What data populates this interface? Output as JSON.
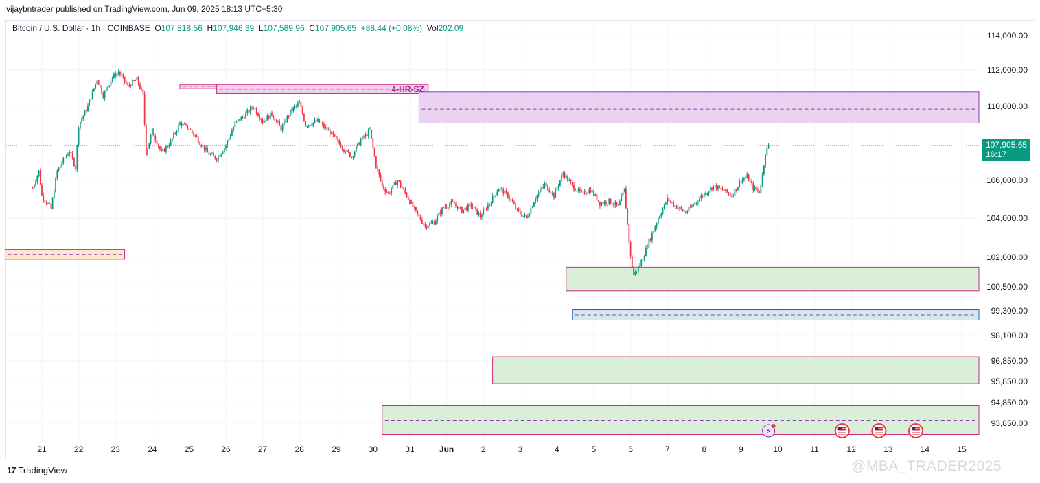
{
  "publish_line": "vijaybntrader published on TradingView.com, Jun 09, 2025 18:13 UTC+5:30",
  "symbol": {
    "name": "Bitcoin / U.S. Dollar · 1h · COINBASE",
    "open_label": "O",
    "open": "107,818.56",
    "high_label": "H",
    "high": "107,946.39",
    "low_label": "L",
    "low": "107,589.96",
    "close_label": "C",
    "close": "107,905.65",
    "change": "+88.44 (+0.08%)",
    "vol_label": "Vol",
    "vol": "202.09"
  },
  "price_tag": {
    "price": "107,905.65",
    "countdown": "16:17"
  },
  "footer": {
    "logo_mark": "17",
    "logo_text": "TradingView"
  },
  "watermark": "@MBA_TRADER2025",
  "colors": {
    "up": "#089981",
    "down": "#f23645",
    "accent": "#089981"
  },
  "chart_data": {
    "type": "candlestick",
    "title": "Bitcoin / U.S. Dollar · 1h · COINBASE",
    "y_axis_labels": [
      "114,000.00",
      "112,000.00",
      "110,000.00",
      "106,000.00",
      "104,000.00",
      "102,000.00",
      "100,500.00",
      "99,300.00",
      "98,100.00",
      "96,850.00",
      "95,850.00",
      "94,850.00",
      "93,850.00"
    ],
    "x_axis_labels": [
      "21",
      "22",
      "23",
      "24",
      "25",
      "26",
      "27",
      "28",
      "29",
      "30",
      "31",
      "Jun",
      "2",
      "3",
      "4",
      "5",
      "6",
      "7",
      "8",
      "9",
      "10",
      "11",
      "12",
      "13",
      "14",
      "15"
    ],
    "current_price": 107905.65,
    "price_path": [
      {
        "x": "May 20 18:00",
        "y": 105600
      },
      {
        "x": "May 20 22:00",
        "y": 106500
      },
      {
        "x": "May 21 00:00",
        "y": 105200
      },
      {
        "x": "May 21 06:00",
        "y": 104500
      },
      {
        "x": "May 21 10:00",
        "y": 106500
      },
      {
        "x": "May 21 14:00",
        "y": 107100
      },
      {
        "x": "May 21 18:00",
        "y": 107600
      },
      {
        "x": "May 21 22:00",
        "y": 106700
      },
      {
        "x": "May 22 00:00",
        "y": 109000
      },
      {
        "x": "May 22 06:00",
        "y": 110000
      },
      {
        "x": "May 22 12:00",
        "y": 111500
      },
      {
        "x": "May 22 16:00",
        "y": 110600
      },
      {
        "x": "May 22 22:00",
        "y": 111600
      },
      {
        "x": "May 23 02:00",
        "y": 111900
      },
      {
        "x": "May 23 08:00",
        "y": 111100
      },
      {
        "x": "May 23 14:00",
        "y": 111500
      },
      {
        "x": "May 23 18:00",
        "y": 110600
      },
      {
        "x": "May 23 20:00",
        "y": 107500
      },
      {
        "x": "May 24 00:00",
        "y": 108700
      },
      {
        "x": "May 24 06:00",
        "y": 107500
      },
      {
        "x": "May 24 12:00",
        "y": 108100
      },
      {
        "x": "May 24 18:00",
        "y": 109100
      },
      {
        "x": "May 25 00:00",
        "y": 108800
      },
      {
        "x": "May 25 06:00",
        "y": 108200
      },
      {
        "x": "May 25 12:00",
        "y": 107500
      },
      {
        "x": "May 25 18:00",
        "y": 107200
      },
      {
        "x": "May 26 00:00",
        "y": 107900
      },
      {
        "x": "May 26 06:00",
        "y": 109100
      },
      {
        "x": "May 26 12:00",
        "y": 109500
      },
      {
        "x": "May 26 18:00",
        "y": 110000
      },
      {
        "x": "May 27 00:00",
        "y": 109200
      },
      {
        "x": "May 27 06:00",
        "y": 109600
      },
      {
        "x": "May 27 12:00",
        "y": 108800
      },
      {
        "x": "May 27 18:00",
        "y": 109700
      },
      {
        "x": "May 28 00:00",
        "y": 110200
      },
      {
        "x": "May 28 04:00",
        "y": 109000
      },
      {
        "x": "May 28 12:00",
        "y": 109200
      },
      {
        "x": "May 28 20:00",
        "y": 108600
      },
      {
        "x": "May 29 04:00",
        "y": 107800
      },
      {
        "x": "May 29 10:00",
        "y": 107300
      },
      {
        "x": "May 29 16:00",
        "y": 108200
      },
      {
        "x": "May 29 22:00",
        "y": 108700
      },
      {
        "x": "May 30 02:00",
        "y": 106800
      },
      {
        "x": "May 30 06:00",
        "y": 105700
      },
      {
        "x": "May 30 10:00",
        "y": 105300
      },
      {
        "x": "May 30 16:00",
        "y": 106000
      },
      {
        "x": "May 30 22:00",
        "y": 105200
      },
      {
        "x": "May 31 04:00",
        "y": 104300
      },
      {
        "x": "May 31 10:00",
        "y": 103600
      },
      {
        "x": "May 31 16:00",
        "y": 103800
      },
      {
        "x": "May 31 22:00",
        "y": 104600
      },
      {
        "x": "Jun 1 04:00",
        "y": 104800
      },
      {
        "x": "Jun 1 10:00",
        "y": 104400
      },
      {
        "x": "Jun 1 16:00",
        "y": 104700
      },
      {
        "x": "Jun 1 22:00",
        "y": 104100
      },
      {
        "x": "Jun 2 04:00",
        "y": 104800
      },
      {
        "x": "Jun 2 10:00",
        "y": 105600
      },
      {
        "x": "Jun 2 16:00",
        "y": 105200
      },
      {
        "x": "Jun 2 22:00",
        "y": 104400
      },
      {
        "x": "Jun 3 04:00",
        "y": 104000
      },
      {
        "x": "Jun 3 10:00",
        "y": 105100
      },
      {
        "x": "Jun 3 16:00",
        "y": 105800
      },
      {
        "x": "Jun 3 22:00",
        "y": 105200
      },
      {
        "x": "Jun 4 04:00",
        "y": 106400
      },
      {
        "x": "Jun 4 10:00",
        "y": 105700
      },
      {
        "x": "Jun 4 16:00",
        "y": 105300
      },
      {
        "x": "Jun 4 22:00",
        "y": 105500
      },
      {
        "x": "Jun 5 04:00",
        "y": 104800
      },
      {
        "x": "Jun 5 10:00",
        "y": 104900
      },
      {
        "x": "Jun 5 16:00",
        "y": 104600
      },
      {
        "x": "Jun 5 20:00",
        "y": 105500
      },
      {
        "x": "Jun 5 22:00",
        "y": 103700
      },
      {
        "x": "Jun 6 00:00",
        "y": 102000
      },
      {
        "x": "Jun 6 02:00",
        "y": 101100
      },
      {
        "x": "Jun 6 06:00",
        "y": 101600
      },
      {
        "x": "Jun 6 12:00",
        "y": 102800
      },
      {
        "x": "Jun 6 18:00",
        "y": 104000
      },
      {
        "x": "Jun 7 00:00",
        "y": 105000
      },
      {
        "x": "Jun 7 06:00",
        "y": 104600
      },
      {
        "x": "Jun 7 12:00",
        "y": 104300
      },
      {
        "x": "Jun 7 18:00",
        "y": 104800
      },
      {
        "x": "Jun 8 00:00",
        "y": 105300
      },
      {
        "x": "Jun 8 06:00",
        "y": 105700
      },
      {
        "x": "Jun 8 12:00",
        "y": 105500
      },
      {
        "x": "Jun 8 18:00",
        "y": 105200
      },
      {
        "x": "Jun 9 00:00",
        "y": 106000
      },
      {
        "x": "Jun 9 04:00",
        "y": 106200
      },
      {
        "x": "Jun 9 08:00",
        "y": 105600
      },
      {
        "x": "Jun 9 12:00",
        "y": 105400
      },
      {
        "x": "Jun 9 14:00",
        "y": 106300
      },
      {
        "x": "Jun 9 16:00",
        "y": 107500
      },
      {
        "x": "Jun 9 18:00",
        "y": 107905.65
      }
    ],
    "zones": [
      {
        "label": "",
        "from_time": "May 20",
        "to_time": "May 23 06:00",
        "low": 101900,
        "high": 102400,
        "mid": 102150,
        "fill": "#ffe7cf",
        "border": "#cc2a7a"
      },
      {
        "label": "",
        "from_time": "May 24 18:00",
        "to_time": "May 27 08:00",
        "low": 111000,
        "high": 111200,
        "mid": 111100,
        "fill": "#f9cfe6",
        "border": "#cc2a7a"
      },
      {
        "label": "4-HR-SZ",
        "from_time": "May 25 18:00",
        "to_time": "May 31 12:00",
        "low": 110700,
        "high": 111200,
        "mid": 110950,
        "fill": "#f5cdee",
        "border": "#cc2a7a"
      },
      {
        "label": "",
        "from_time": "May 31 06:00",
        "to_time": "Jun 16",
        "low": 109100,
        "high": 110800,
        "mid": 109850,
        "fill": "#ead3f0",
        "border": "#8e3ab0"
      },
      {
        "label": "",
        "from_time": "Jun 4 06:00",
        "to_time": "Jun 16",
        "low": 100300,
        "high": 101500,
        "mid": 100900,
        "fill": "#d9efd7",
        "border": "#cc2a7a"
      },
      {
        "label": "",
        "from_time": "Jun 4 10:00",
        "to_time": "Jun 16",
        "low": 98850,
        "high": 99350,
        "mid": 99100,
        "fill": "#d4e9ee",
        "border": "#1e5cc0"
      },
      {
        "label": "",
        "from_time": "Jun 2 06:00",
        "to_time": "Jun 16",
        "low": 95750,
        "high": 97050,
        "mid": 96400,
        "fill": "#d9efd7",
        "border": "#cc2a7a"
      },
      {
        "label": "",
        "from_time": "May 30 06:00",
        "to_time": "Jun 16",
        "low": 93300,
        "high": 94700,
        "mid": 94000,
        "fill": "#d9efd7",
        "border": "#cc2a7a"
      }
    ],
    "events": [
      {
        "type": "earnings",
        "time": "Jun 9 18:00"
      },
      {
        "type": "us-flag",
        "time": "Jun 11 18:00"
      },
      {
        "type": "us-flag",
        "time": "Jun 12 18:00"
      },
      {
        "type": "us-flag",
        "time": "Jun 13 18:00"
      }
    ],
    "grid": true,
    "legend": "top-left"
  }
}
